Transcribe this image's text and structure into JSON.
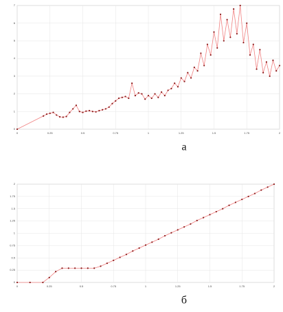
{
  "chart_data": [
    {
      "type": "line",
      "caption": "а",
      "line_color": "#f08080",
      "marker_color": "#8b1a1a",
      "grid": true,
      "x": [
        0,
        0.2,
        0.225,
        0.25,
        0.275,
        0.3,
        0.325,
        0.35,
        0.375,
        0.4,
        0.425,
        0.45,
        0.475,
        0.5,
        0.525,
        0.55,
        0.575,
        0.6,
        0.625,
        0.65,
        0.675,
        0.7,
        0.725,
        0.75,
        0.775,
        0.8,
        0.825,
        0.85,
        0.875,
        0.9,
        0.925,
        0.95,
        0.975,
        1.0,
        1.025,
        1.05,
        1.075,
        1.1,
        1.125,
        1.15,
        1.175,
        1.2,
        1.225,
        1.25,
        1.275,
        1.3,
        1.325,
        1.35,
        1.375,
        1.4,
        1.425,
        1.45,
        1.475,
        1.5,
        1.525,
        1.55,
        1.575,
        1.6,
        1.625,
        1.65,
        1.675,
        1.7,
        1.725,
        1.75,
        1.775,
        1.8,
        1.825,
        1.85,
        1.875,
        1.9,
        1.925,
        1.95,
        1.975,
        2.0
      ],
      "values": [
        0,
        0.75,
        0.85,
        0.9,
        0.95,
        0.8,
        0.7,
        0.68,
        0.72,
        0.95,
        1.15,
        1.35,
        1.0,
        0.95,
        1.02,
        1.05,
        1.0,
        0.98,
        1.05,
        1.1,
        1.15,
        1.25,
        1.45,
        1.6,
        1.75,
        1.8,
        1.85,
        1.75,
        2.6,
        1.9,
        2.05,
        2.0,
        1.7,
        1.9,
        1.75,
        2.0,
        1.8,
        2.1,
        1.9,
        2.2,
        2.3,
        2.6,
        2.4,
        2.9,
        2.7,
        3.2,
        2.9,
        3.5,
        3.3,
        4.3,
        3.6,
        4.8,
        4.2,
        5.5,
        4.6,
        6.5,
        5.0,
        6.2,
        5.2,
        6.8,
        5.4,
        7.0,
        4.9,
        6.0,
        4.2,
        4.8,
        3.4,
        4.5,
        3.2,
        3.8,
        3.0,
        3.9,
        3.3,
        3.6
      ],
      "xlim": [
        0,
        2
      ],
      "xticks": [
        0,
        0.25,
        0.5,
        0.75,
        1,
        1.25,
        1.5,
        1.75,
        2
      ],
      "ylim": [
        0,
        7
      ],
      "yticks": [
        0,
        1,
        2,
        3,
        4,
        5,
        6,
        7
      ]
    },
    {
      "type": "line",
      "caption": "б",
      "line_color": "#f08080",
      "marker_color": "#8b1a1a",
      "grid": true,
      "x": [
        0,
        0.1,
        0.2,
        0.25,
        0.3,
        0.35,
        0.4,
        0.45,
        0.5,
        0.55,
        0.6,
        0.65,
        0.7,
        0.75,
        0.8,
        0.85,
        0.9,
        0.95,
        1.0,
        1.05,
        1.1,
        1.15,
        1.2,
        1.25,
        1.3,
        1.35,
        1.4,
        1.45,
        1.5,
        1.55,
        1.6,
        1.65,
        1.7,
        1.75,
        1.8,
        1.85,
        1.9,
        1.95,
        2.0
      ],
      "values": [
        0,
        0,
        0,
        0.1,
        0.22,
        0.29,
        0.29,
        0.29,
        0.29,
        0.29,
        0.29,
        0.33,
        0.39,
        0.45,
        0.51,
        0.57,
        0.64,
        0.7,
        0.76,
        0.82,
        0.88,
        0.95,
        1.01,
        1.07,
        1.13,
        1.19,
        1.26,
        1.32,
        1.38,
        1.44,
        1.5,
        1.57,
        1.63,
        1.69,
        1.75,
        1.81,
        1.88,
        1.94,
        2.0
      ],
      "xlim": [
        0,
        2
      ],
      "xticks": [
        0,
        0.25,
        0.5,
        0.75,
        1,
        1.25,
        1.5,
        1.75,
        2
      ],
      "ylim": [
        0,
        2
      ],
      "yticks": [
        0,
        0.25,
        0.5,
        0.75,
        1,
        1.25,
        1.5,
        1.75,
        2
      ]
    }
  ]
}
